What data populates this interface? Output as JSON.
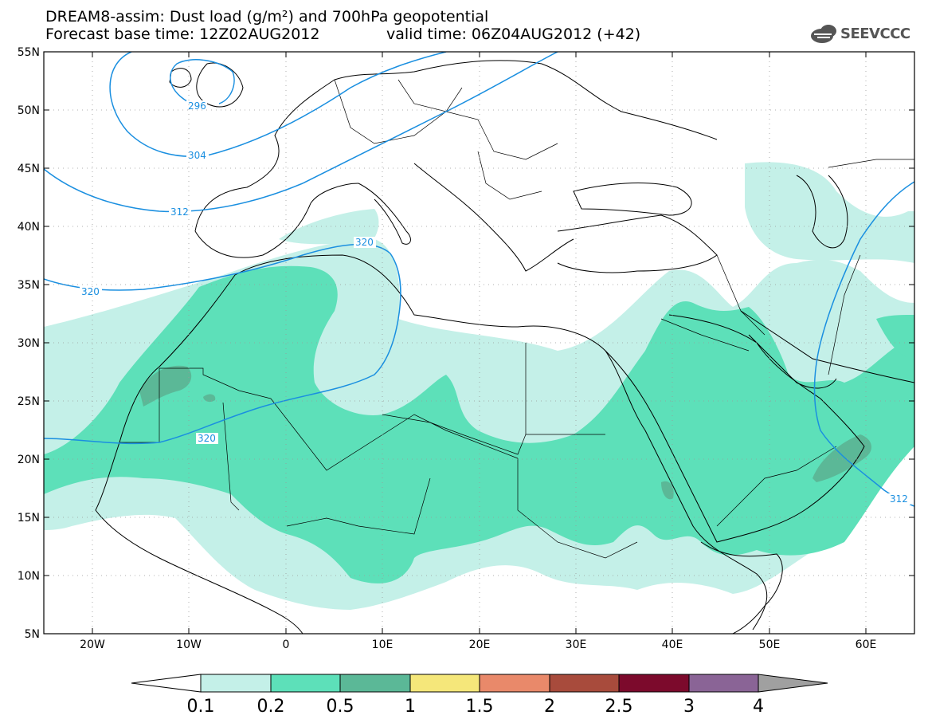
{
  "header": {
    "title_line1": "DREAM8-assim: Dust load (g/m²) and 700hPa geopotential",
    "title_line2_left": "Forecast base time: 12Z02AUG2012",
    "title_line2_right": "valid time: 06Z04AUG2012 (+42)"
  },
  "logo": {
    "text": "SEEVCCC",
    "icon": "cloud-icon"
  },
  "map": {
    "lat_labels": [
      "55N",
      "50N",
      "45N",
      "40N",
      "35N",
      "30N",
      "25N",
      "20N",
      "15N",
      "10N",
      "5N"
    ],
    "lon_labels": [
      "20W",
      "10W",
      "0",
      "10E",
      "20E",
      "30E",
      "40E",
      "50E",
      "60E"
    ],
    "contour_labels": [
      "296",
      "304",
      "312",
      "320",
      "320",
      "320",
      "312"
    ],
    "contour_color": "#1a8fe0"
  },
  "colorbar": {
    "labels": [
      "0.1",
      "0.2",
      "0.5",
      "1",
      "1.5",
      "2",
      "2.5",
      "3",
      "4"
    ],
    "colors": [
      "#ffffff",
      "#c4f0e8",
      "#5de0b9",
      "#5bb897",
      "#f5e77a",
      "#e9896a",
      "#a84b3c",
      "#7c0a2c",
      "#8a6496",
      "#a0a0a0"
    ]
  }
}
